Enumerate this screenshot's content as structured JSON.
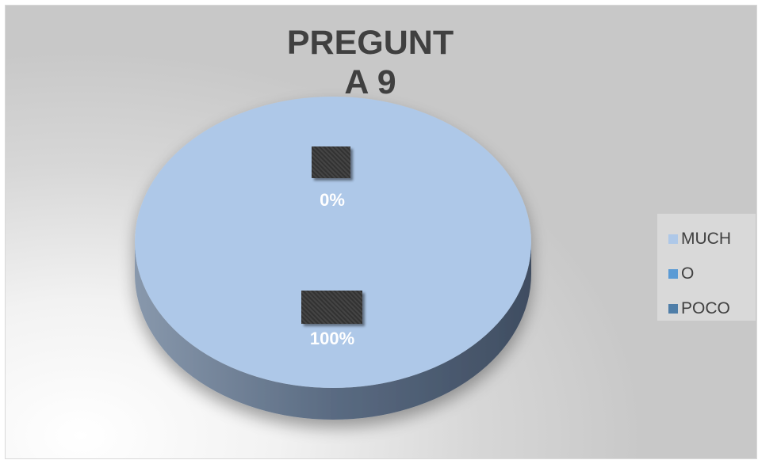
{
  "chart_data": {
    "type": "pie",
    "title": "PREGUNTA 9",
    "title_lines": [
      "PREGUNT",
      "A 9"
    ],
    "categories": [
      "MUCHO",
      "POCO"
    ],
    "values": [
      100,
      0
    ],
    "data_labels": [
      "100%",
      "0%"
    ],
    "colors": [
      "#aec8e8",
      "#4f81bd"
    ],
    "legend": {
      "placement": "right",
      "lines": [
        {
          "text": "MUCH",
          "color": "#aec8e8"
        },
        {
          "text": "O",
          "color": "#5b9bd5"
        },
        {
          "text": "POCO",
          "color": "#4f7ea8"
        }
      ]
    },
    "style": "3d"
  }
}
